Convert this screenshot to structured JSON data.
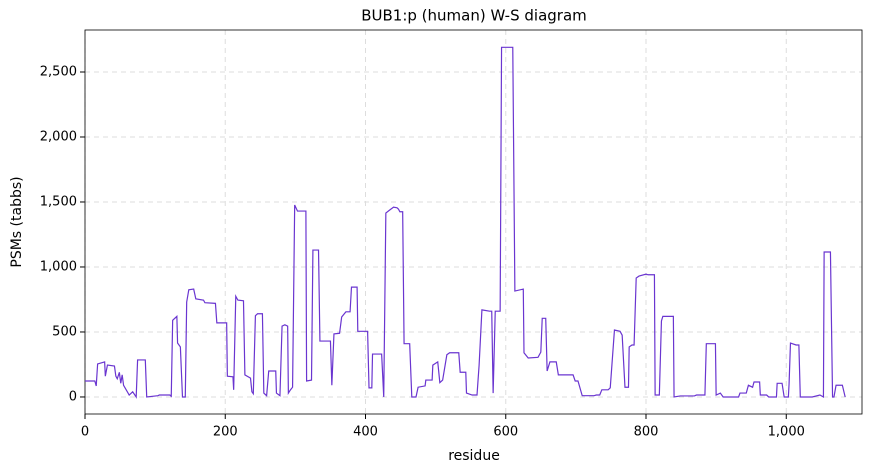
{
  "chart_data": {
    "type": "line",
    "title": "BUB1:p (human) W-S diagram",
    "x_label": "residue",
    "y_label": "PSMs (tabbs)",
    "x": [
      0,
      14,
      16,
      18,
      28,
      29,
      32,
      42,
      44,
      46,
      49,
      51,
      53,
      55,
      63,
      68,
      73,
      75,
      86,
      88,
      104,
      106,
      121,
      123,
      125,
      131,
      132,
      136,
      139,
      143,
      145,
      148,
      155,
      158,
      169,
      171,
      186,
      188,
      202,
      203,
      211,
      212,
      215,
      218,
      226,
      228,
      236,
      238,
      240,
      243,
      246,
      253,
      255,
      259,
      262,
      272,
      273,
      278,
      281,
      285,
      289,
      290,
      293,
      296,
      299,
      303,
      315,
      316,
      323,
      325,
      333,
      335,
      350,
      352,
      355,
      363,
      366,
      372,
      378,
      380,
      388,
      389,
      403,
      405,
      409,
      410,
      423,
      426,
      429,
      435,
      440,
      445,
      447,
      449,
      453,
      455,
      463,
      466,
      472,
      475,
      485,
      486,
      495,
      496,
      503,
      506,
      510,
      516,
      520,
      533,
      535,
      543,
      544,
      552,
      559,
      562,
      566,
      577,
      580,
      582,
      585,
      592,
      594,
      610,
      613,
      625,
      626,
      632,
      646,
      650,
      652,
      657,
      659,
      663,
      672,
      675,
      696,
      699,
      703,
      709,
      726,
      729,
      734,
      737,
      746,
      749,
      755,
      763,
      766,
      770,
      775,
      776,
      780,
      783,
      786,
      790,
      800,
      803,
      812,
      813,
      819,
      822,
      824,
      839,
      840,
      849,
      869,
      872,
      884,
      886,
      899,
      900,
      906,
      910,
      932,
      934,
      943,
      946,
      952,
      954,
      962,
      963,
      972,
      975,
      986,
      987,
      994,
      997,
      1003,
      1004,
      1006,
      1014,
      1018,
      1020,
      1037,
      1048,
      1053,
      1054,
      1063,
      1066,
      1068,
      1071,
      1080,
      1084
    ],
    "series": [
      {
        "name": "PSMs",
        "color": "#6a35d0",
        "values": [
          123,
          123,
          85,
          254,
          270,
          160,
          246,
          238,
          160,
          140,
          190,
          105,
          170,
          90,
          15,
          40,
          0,
          285,
          285,
          0,
          10,
          15,
          15,
          5,
          590,
          620,
          415,
          385,
          0,
          0,
          730,
          825,
          830,
          755,
          745,
          725,
          720,
          570,
          570,
          160,
          155,
          55,
          775,
          745,
          740,
          170,
          145,
          40,
          25,
          625,
          640,
          640,
          30,
          10,
          200,
          200,
          30,
          10,
          545,
          555,
          545,
          30,
          55,
          75,
          1477,
          1430,
          1430,
          123,
          130,
          1130,
          1130,
          430,
          430,
          90,
          485,
          490,
          615,
          655,
          655,
          845,
          845,
          505,
          505,
          70,
          70,
          330,
          330,
          0,
          1415,
          1440,
          1460,
          1455,
          1445,
          1425,
          1425,
          410,
          410,
          0,
          0,
          75,
          85,
          130,
          130,
          245,
          270,
          110,
          130,
          325,
          340,
          340,
          190,
          190,
          30,
          15,
          15,
          245,
          670,
          660,
          660,
          30,
          660,
          660,
          2690,
          2690,
          815,
          830,
          340,
          300,
          305,
          345,
          605,
          605,
          200,
          270,
          270,
          170,
          170,
          123,
          123,
          10,
          10,
          15,
          15,
          55,
          55,
          70,
          515,
          505,
          475,
          75,
          75,
          385,
          400,
          400,
          915,
          930,
          945,
          940,
          940,
          15,
          15,
          585,
          620,
          620,
          0,
          8,
          8,
          15,
          15,
          410,
          410,
          15,
          30,
          0,
          0,
          30,
          30,
          90,
          75,
          115,
          115,
          15,
          15,
          0,
          0,
          105,
          105,
          0,
          0,
          100,
          415,
          400,
          400,
          0,
          0,
          15,
          0,
          1115,
          1115,
          0,
          0,
          90,
          90,
          0
        ]
      }
    ],
    "xlim": [
      0,
      1108
    ],
    "ylim": [
      -131,
      2823
    ],
    "xticks": [
      0,
      200,
      400,
      600,
      800,
      {
        "value": 1000,
        "label": "1,000"
      }
    ],
    "yticks": [
      0,
      500,
      {
        "value": 1000,
        "label": "1,000"
      },
      {
        "value": 1500,
        "label": "1,500"
      },
      {
        "value": 2000,
        "label": "2,000"
      },
      {
        "value": 2500,
        "label": "2,500"
      }
    ],
    "grid": true
  }
}
